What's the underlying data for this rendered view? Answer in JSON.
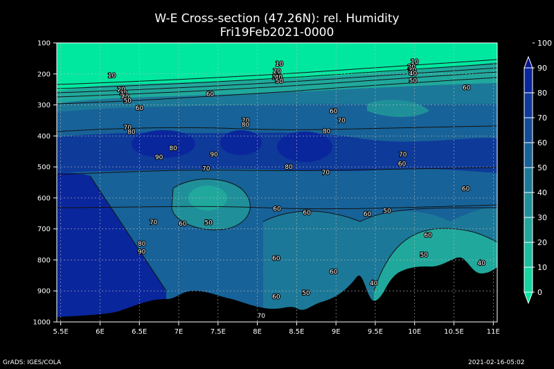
{
  "title": "W-E Cross-section (47.26N): rel. Humidity",
  "subtitle": "Fri19Feb2021-0000",
  "footer_left": "GrADS: IGES/COLA",
  "footer_right": "2021-02-16-05:02",
  "colors": {
    "background": "#000000",
    "terrain": "#000000",
    "grid": "#bbbbbb",
    "contour": "#111111"
  },
  "chart_data": {
    "type": "contour",
    "x_ticks": [
      "5.5E",
      "6E",
      "6.5E",
      "7E",
      "7.5E",
      "8E",
      "8.5E",
      "9E",
      "9.5E",
      "10E",
      "10.5E",
      "11E"
    ],
    "x_values": [
      5.5,
      6,
      6.5,
      7,
      7.5,
      8,
      8.5,
      9,
      9.5,
      10,
      10.5,
      11
    ],
    "y_ticks": [
      "100",
      "200",
      "300",
      "400",
      "500",
      "600",
      "700",
      "800",
      "900",
      "1000"
    ],
    "y_values": [
      100,
      200,
      300,
      400,
      500,
      600,
      700,
      800,
      900,
      1000
    ],
    "xlim": [
      5.45,
      11.05
    ],
    "ylim": [
      100,
      1000
    ],
    "grid": true,
    "colorbar": {
      "placement": "right",
      "levels": [
        0,
        10,
        20,
        30,
        40,
        50,
        60,
        70,
        80,
        90,
        100
      ],
      "labels": [
        "0",
        "10",
        "20",
        "30",
        "40",
        "50",
        "60",
        "70",
        "80",
        "90",
        "100"
      ],
      "colors": [
        "#00e8a0",
        "#14d6a0",
        "#1cbea0",
        "#20a89c",
        "#1f909a",
        "#1c7898",
        "#176298",
        "#124c98",
        "#0e3a9a",
        "#0a269c",
        "#0a1690"
      ]
    },
    "contour_labels": [
      {
        "text": "10",
        "x": 6.15,
        "y": 205
      },
      {
        "text": "20",
        "x": 6.27,
        "y": 250
      },
      {
        "text": "30",
        "x": 6.3,
        "y": 262
      },
      {
        "text": "40",
        "x": 6.32,
        "y": 274
      },
      {
        "text": "50",
        "x": 6.35,
        "y": 287
      },
      {
        "text": "60",
        "x": 6.5,
        "y": 310
      },
      {
        "text": "70",
        "x": 6.35,
        "y": 372
      },
      {
        "text": "80",
        "x": 6.4,
        "y": 387
      },
      {
        "text": "60",
        "x": 7.4,
        "y": 265
      },
      {
        "text": "90",
        "x": 6.75,
        "y": 468
      },
      {
        "text": "80",
        "x": 6.93,
        "y": 440
      },
      {
        "text": "70",
        "x": 7.35,
        "y": 505
      },
      {
        "text": "90",
        "x": 7.45,
        "y": 460
      },
      {
        "text": "70",
        "x": 7.85,
        "y": 350
      },
      {
        "text": "80",
        "x": 7.85,
        "y": 363
      },
      {
        "text": "10",
        "x": 8.28,
        "y": 167
      },
      {
        "text": "20",
        "x": 8.25,
        "y": 190
      },
      {
        "text": "30",
        "x": 8.24,
        "y": 210
      },
      {
        "text": "40",
        "x": 8.27,
        "y": 210
      },
      {
        "text": "50",
        "x": 8.28,
        "y": 223
      },
      {
        "text": "80",
        "x": 8.4,
        "y": 500
      },
      {
        "text": "80",
        "x": 8.88,
        "y": 385
      },
      {
        "text": "60",
        "x": 8.97,
        "y": 320
      },
      {
        "text": "70",
        "x": 9.07,
        "y": 350
      },
      {
        "text": "70",
        "x": 8.87,
        "y": 518
      },
      {
        "text": "60",
        "x": 8.25,
        "y": 635
      },
      {
        "text": "60",
        "x": 8.63,
        "y": 647
      },
      {
        "text": "60",
        "x": 9.4,
        "y": 652
      },
      {
        "text": "50",
        "x": 9.65,
        "y": 642
      },
      {
        "text": "60",
        "x": 8.24,
        "y": 795
      },
      {
        "text": "60",
        "x": 8.97,
        "y": 838
      },
      {
        "text": "60",
        "x": 8.24,
        "y": 918
      },
      {
        "text": "50",
        "x": 8.62,
        "y": 906
      },
      {
        "text": "70",
        "x": 8.05,
        "y": 980
      },
      {
        "text": "40",
        "x": 9.48,
        "y": 875
      },
      {
        "text": "70",
        "x": 9.85,
        "y": 460
      },
      {
        "text": "60",
        "x": 9.84,
        "y": 490
      },
      {
        "text": "20",
        "x": 9.96,
        "y": 177
      },
      {
        "text": "30",
        "x": 9.97,
        "y": 187
      },
      {
        "text": "40",
        "x": 9.98,
        "y": 198
      },
      {
        "text": "10",
        "x": 10.0,
        "y": 160
      },
      {
        "text": "50",
        "x": 9.98,
        "y": 222
      },
      {
        "text": "60",
        "x": 10.66,
        "y": 244
      },
      {
        "text": "60",
        "x": 10.65,
        "y": 570
      },
      {
        "text": "60",
        "x": 10.17,
        "y": 720
      },
      {
        "text": "50",
        "x": 10.12,
        "y": 783
      },
      {
        "text": "40",
        "x": 10.85,
        "y": 810
      },
      {
        "text": "70",
        "x": 6.68,
        "y": 678
      },
      {
        "text": "60",
        "x": 7.05,
        "y": 683
      },
      {
        "text": "50",
        "x": 7.38,
        "y": 680
      },
      {
        "text": "80",
        "x": 6.53,
        "y": 748
      },
      {
        "text": "90",
        "x": 6.53,
        "y": 773
      }
    ]
  }
}
